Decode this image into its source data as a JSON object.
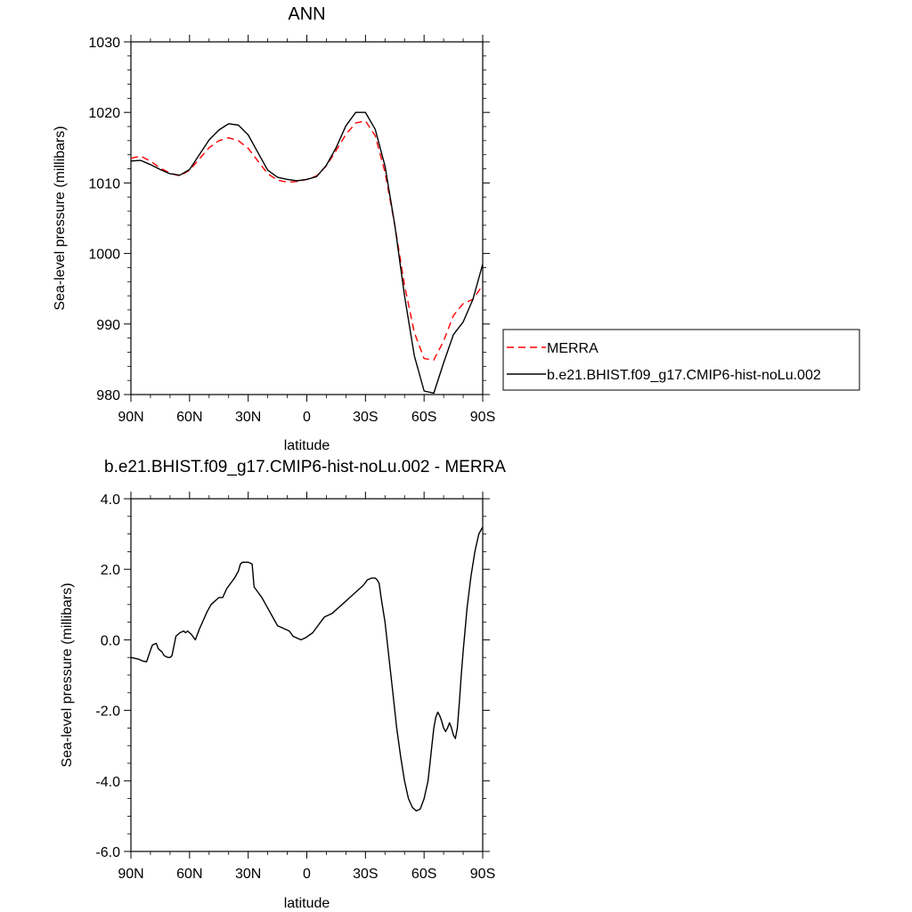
{
  "chart_data": [
    {
      "type": "line",
      "title": "ANN",
      "xlabel": "latitude",
      "ylabel": "Sea-level pressure (millibars)",
      "xlim": [
        90,
        -90
      ],
      "ylim": [
        980,
        1030
      ],
      "x_ticks": [
        90,
        60,
        30,
        0,
        -30,
        -60,
        -90
      ],
      "x_tick_labels": [
        "90N",
        "60N",
        "30N",
        "0",
        "30S",
        "60S",
        "90S"
      ],
      "y_ticks": [
        980,
        990,
        1000,
        1010,
        1020,
        1030
      ],
      "y_tick_labels": [
        "980",
        "990",
        "1000",
        "1010",
        "1020",
        "1030"
      ],
      "grid": false,
      "legend_position": "right",
      "series": [
        {
          "name": "MERRA",
          "color": "#ff0000",
          "dash": "dashed",
          "x": [
            90,
            85,
            80,
            75,
            70,
            65,
            60,
            55,
            50,
            45,
            40,
            35,
            30,
            25,
            20,
            15,
            10,
            5,
            0,
            -5,
            -10,
            -15,
            -20,
            -25,
            -30,
            -35,
            -40,
            -45,
            -50,
            -55,
            -60,
            -65,
            -70,
            -75,
            -80,
            -85,
            -90
          ],
          "y": [
            1013.5,
            1013.8,
            1013.1,
            1012.1,
            1011.4,
            1011.0,
            1011.8,
            1013.4,
            1015.0,
            1016.0,
            1016.4,
            1016.0,
            1014.9,
            1013.1,
            1011.3,
            1010.4,
            1010.1,
            1010.2,
            1010.5,
            1011.0,
            1012.4,
            1014.6,
            1016.9,
            1018.5,
            1018.8,
            1016.7,
            1011.5,
            1004.0,
            995.5,
            988.8,
            985.1,
            984.9,
            987.6,
            991.2,
            992.9,
            993.5,
            995.5
          ]
        },
        {
          "name": "b.e21.BHIST.f09_g17.CMIP6-hist-noLu.002",
          "color": "#000000",
          "dash": "solid",
          "x": [
            90,
            85,
            80,
            75,
            70,
            65,
            60,
            55,
            50,
            45,
            40,
            35,
            30,
            25,
            20,
            15,
            10,
            5,
            0,
            -5,
            -10,
            -15,
            -20,
            -25,
            -30,
            -35,
            -40,
            -45,
            -50,
            -55,
            -60,
            -65,
            -70,
            -75,
            -80,
            -85,
            -90
          ],
          "y": [
            1013.1,
            1013.2,
            1012.6,
            1011.9,
            1011.3,
            1011.1,
            1011.9,
            1014.0,
            1016.1,
            1017.5,
            1018.4,
            1018.2,
            1016.8,
            1014.3,
            1011.8,
            1010.8,
            1010.5,
            1010.3,
            1010.5,
            1010.9,
            1012.5,
            1015.0,
            1018.1,
            1020.0,
            1020.0,
            1017.6,
            1012.4,
            1004.0,
            994.0,
            985.5,
            980.5,
            980.2,
            984.5,
            988.5,
            990.3,
            993.5,
            998.5
          ]
        }
      ]
    },
    {
      "type": "line",
      "title": "b.e21.BHIST.f09_g17.CMIP6-hist-noLu.002 - MERRA",
      "xlabel": "latitude",
      "ylabel": "Sea-level pressure (millibars)",
      "xlim": [
        90,
        -90
      ],
      "ylim": [
        -6.0,
        4.0
      ],
      "x_ticks": [
        90,
        60,
        30,
        0,
        -30,
        -60,
        -90
      ],
      "x_tick_labels": [
        "90N",
        "60N",
        "30N",
        "0",
        "30S",
        "60S",
        "90S"
      ],
      "y_ticks": [
        -6,
        -4,
        -2,
        0,
        2,
        4
      ],
      "y_tick_labels": [
        "-6.0",
        "-4.0",
        "-2.0",
        "0.0",
        "2.0",
        "4.0"
      ],
      "grid": false,
      "series": [
        {
          "color": "#000000",
          "dash": "solid",
          "x": [
            90,
            86,
            84,
            82,
            80,
            79,
            78,
            77,
            76,
            74,
            73,
            71,
            70,
            69,
            67,
            65,
            63,
            62,
            61,
            59,
            57,
            55,
            53,
            51,
            49,
            47,
            46,
            45,
            43,
            41,
            39,
            37,
            35,
            34,
            33,
            32,
            30,
            28,
            27,
            25,
            23,
            21,
            19,
            17,
            15,
            13,
            11,
            9,
            7,
            5,
            3,
            1,
            0,
            -1,
            -3,
            -5,
            -7,
            -9,
            -11,
            -13,
            -14,
            -15,
            -17,
            -19,
            -21,
            -23,
            -25,
            -27,
            -29,
            -31,
            -33,
            -35,
            -36,
            -37,
            -38,
            -40,
            -42,
            -44,
            -46,
            -48,
            -50,
            -52,
            -54,
            -56,
            -58,
            -60,
            -62,
            -63,
            -64,
            -65,
            -66,
            -67,
            -68,
            -69,
            -70,
            -71,
            -72,
            -73,
            -74,
            -75,
            -76,
            -77,
            -78,
            -79,
            -80,
            -81,
            -82,
            -84,
            -86,
            -88,
            -90
          ],
          "y": [
            -0.5,
            -0.55,
            -0.6,
            -0.62,
            -0.3,
            -0.15,
            -0.12,
            -0.1,
            -0.25,
            -0.35,
            -0.45,
            -0.5,
            -0.5,
            -0.45,
            0.1,
            0.2,
            0.25,
            0.2,
            0.25,
            0.15,
            0.0,
            0.3,
            0.55,
            0.8,
            1.0,
            1.1,
            1.15,
            1.2,
            1.2,
            1.45,
            1.6,
            1.75,
            1.95,
            2.15,
            2.2,
            2.2,
            2.2,
            2.15,
            1.5,
            1.35,
            1.2,
            1.0,
            0.8,
            0.6,
            0.4,
            0.35,
            0.3,
            0.25,
            0.1,
            0.05,
            0.0,
            0.05,
            0.08,
            0.12,
            0.2,
            0.35,
            0.5,
            0.65,
            0.7,
            0.75,
            0.8,
            0.85,
            0.95,
            1.05,
            1.15,
            1.25,
            1.35,
            1.45,
            1.55,
            1.7,
            1.75,
            1.75,
            1.7,
            1.6,
            1.2,
            0.5,
            -0.5,
            -1.5,
            -2.5,
            -3.3,
            -4.0,
            -4.5,
            -4.75,
            -4.85,
            -4.8,
            -4.5,
            -4.0,
            -3.5,
            -3.0,
            -2.5,
            -2.2,
            -2.05,
            -2.15,
            -2.3,
            -2.5,
            -2.6,
            -2.5,
            -2.35,
            -2.5,
            -2.7,
            -2.8,
            -2.5,
            -1.8,
            -1.0,
            -0.3,
            0.3,
            0.9,
            1.8,
            2.5,
            3.0,
            3.2
          ]
        }
      ]
    }
  ]
}
